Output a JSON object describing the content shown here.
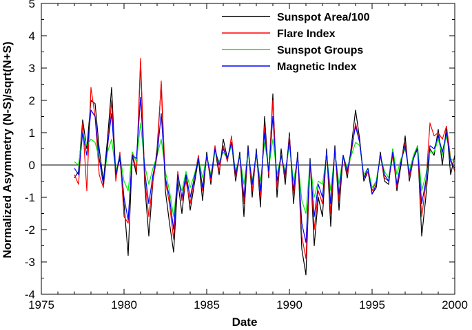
{
  "chart_data": {
    "type": "line",
    "title": "",
    "xlabel": "Date",
    "ylabel": "Normalized Asymmetry (N-S)/sqrt(N+S)",
    "xlim": [
      1975,
      2000
    ],
    "ylim": [
      -4,
      5
    ],
    "xticks": [
      1975,
      1980,
      1985,
      1990,
      1995,
      2000
    ],
    "yticks": [
      -4,
      -3,
      -2,
      -1,
      0,
      1,
      2,
      3,
      4,
      5
    ],
    "zero_line": true,
    "legend_position": "top-right",
    "x": [
      1977.0,
      1977.25,
      1977.5,
      1977.75,
      1978.0,
      1978.25,
      1978.5,
      1978.75,
      1979.0,
      1979.25,
      1979.5,
      1979.75,
      1980.0,
      1980.25,
      1980.5,
      1980.75,
      1981.0,
      1981.25,
      1981.5,
      1981.75,
      1982.0,
      1982.25,
      1982.5,
      1982.75,
      1983.0,
      1983.25,
      1983.5,
      1983.75,
      1984.0,
      1984.25,
      1984.5,
      1984.75,
      1985.0,
      1985.25,
      1985.5,
      1985.75,
      1986.0,
      1986.25,
      1986.5,
      1986.75,
      1987.0,
      1987.25,
      1987.5,
      1987.75,
      1988.0,
      1988.25,
      1988.5,
      1988.75,
      1989.0,
      1989.25,
      1989.5,
      1989.75,
      1990.0,
      1990.25,
      1990.5,
      1990.75,
      1991.0,
      1991.25,
      1991.5,
      1991.75,
      1992.0,
      1992.25,
      1992.5,
      1992.75,
      1993.0,
      1993.25,
      1993.5,
      1993.75,
      1994.0,
      1994.25,
      1994.5,
      1994.75,
      1995.0,
      1995.25,
      1995.5,
      1995.75,
      1996.0,
      1996.25,
      1996.5,
      1996.75,
      1997.0,
      1997.25,
      1997.5,
      1997.75,
      1998.0,
      1998.25,
      1998.5,
      1998.75,
      1999.0,
      1999.25,
      1999.5,
      1999.75,
      2000.0
    ],
    "series": [
      {
        "name": "Sunspot Area/100",
        "color": "#000000",
        "values": [
          -0.4,
          -0.2,
          1.4,
          0.5,
          2.0,
          1.9,
          0.5,
          -0.5,
          0.8,
          2.4,
          -0.3,
          0.2,
          -1.2,
          -2.8,
          0.3,
          -0.3,
          3.2,
          -0.6,
          -2.2,
          -0.5,
          0.5,
          2.5,
          -0.8,
          -1.8,
          -2.7,
          -0.5,
          -1.5,
          -0.3,
          -1.4,
          -0.6,
          0.2,
          -1.1,
          0.4,
          -0.6,
          0.5,
          -0.3,
          0.8,
          0.2,
          0.7,
          -0.5,
          0.4,
          -1.6,
          0.6,
          -1.0,
          0.5,
          -1.3,
          1.5,
          -0.4,
          2.2,
          -1.0,
          0.5,
          -0.6,
          1.0,
          -1.2,
          0.4,
          -2.6,
          -3.4,
          0.2,
          -2.5,
          -1.0,
          -1.6,
          0.5,
          -1.9,
          0.6,
          -1.4,
          0.3,
          -0.4,
          0.6,
          1.7,
          0.8,
          -0.5,
          -0.2,
          -0.9,
          -0.7,
          0.4,
          -0.5,
          -0.6,
          0.5,
          -0.8,
          0.0,
          0.9,
          -0.5,
          0.2,
          0.6,
          -2.2,
          -1.0,
          0.5,
          0.3,
          1.1,
          0.0,
          1.2,
          -0.3,
          0.3
        ]
      },
      {
        "name": "Flare Index",
        "color": "#ff0000",
        "values": [
          -0.3,
          -0.6,
          1.3,
          -0.8,
          2.4,
          1.5,
          -0.3,
          -0.7,
          0.5,
          2.0,
          -0.5,
          0.4,
          -1.6,
          -1.8,
          0.4,
          -0.2,
          3.3,
          -0.4,
          -1.6,
          -0.5,
          0.3,
          2.6,
          -0.5,
          -1.2,
          -2.3,
          -0.2,
          -1.1,
          -0.5,
          -1.2,
          -0.4,
          0.3,
          -0.8,
          0.3,
          -0.5,
          0.6,
          -0.2,
          0.6,
          0.1,
          0.9,
          -0.4,
          0.3,
          -1.2,
          0.5,
          -0.8,
          0.4,
          -1.0,
          1.2,
          -0.3,
          2.0,
          -0.7,
          0.3,
          -0.4,
          0.9,
          -1.0,
          0.3,
          -2.2,
          -2.9,
          0.1,
          -2.0,
          -0.8,
          -1.2,
          0.4,
          -1.5,
          0.5,
          -1.1,
          0.3,
          -0.3,
          0.4,
          1.3,
          0.7,
          -0.4,
          -0.2,
          -0.8,
          -0.5,
          0.3,
          -0.4,
          -0.5,
          0.3,
          -0.7,
          0.1,
          0.7,
          -0.4,
          0.2,
          0.5,
          -1.6,
          -0.6,
          1.3,
          0.9,
          1.0,
          0.8,
          1.2,
          0.2,
          -0.2
        ]
      },
      {
        "name": "Sunspot Groups",
        "color": "#00ee00",
        "values": [
          0.1,
          0.0,
          1.0,
          0.6,
          0.8,
          0.7,
          0.2,
          -0.6,
          0.4,
          0.8,
          -0.2,
          0.3,
          -0.5,
          -0.8,
          0.4,
          0.1,
          1.3,
          0.0,
          -0.6,
          -0.1,
          0.3,
          0.8,
          -0.2,
          -0.8,
          -1.6,
          -0.4,
          -0.8,
          -0.2,
          -0.7,
          -0.3,
          0.2,
          -0.4,
          0.3,
          -0.3,
          0.4,
          0.1,
          0.4,
          0.2,
          0.6,
          -0.2,
          0.3,
          -0.6,
          0.4,
          -0.5,
          0.3,
          -0.5,
          0.7,
          -0.1,
          0.8,
          -0.3,
          0.3,
          -0.2,
          0.6,
          -0.5,
          0.2,
          -1.1,
          -1.5,
          0.1,
          -1.0,
          -0.5,
          -0.6,
          0.3,
          -0.8,
          0.4,
          -0.6,
          0.3,
          -0.1,
          0.3,
          0.7,
          0.6,
          -0.3,
          -0.1,
          -0.7,
          -0.5,
          0.3,
          -0.2,
          -0.4,
          0.5,
          -0.3,
          0.2,
          0.5,
          -0.2,
          0.3,
          0.6,
          -0.8,
          -0.3,
          0.4,
          0.4,
          0.8,
          0.3,
          0.9,
          0.2,
          0.1
        ]
      },
      {
        "name": "Magnetic Index",
        "color": "#0000ff",
        "values": [
          -0.1,
          -0.3,
          1.0,
          0.3,
          1.7,
          1.5,
          0.2,
          -0.6,
          0.6,
          1.6,
          -0.3,
          0.3,
          -1.0,
          -1.7,
          0.3,
          0.2,
          2.1,
          -0.2,
          -1.2,
          -0.3,
          0.3,
          1.6,
          -0.4,
          -1.0,
          -2.0,
          -0.3,
          -1.0,
          -0.3,
          -1.0,
          -0.4,
          0.2,
          -0.7,
          0.3,
          -0.4,
          0.5,
          0.0,
          0.5,
          0.2,
          0.7,
          -0.3,
          0.3,
          -1.0,
          0.5,
          -0.6,
          0.4,
          -0.8,
          1.0,
          -0.2,
          1.5,
          -0.5,
          0.3,
          -0.3,
          0.8,
          -0.8,
          0.3,
          -1.8,
          -2.4,
          0.1,
          -1.6,
          -0.6,
          -1.0,
          0.4,
          -1.2,
          0.5,
          -0.9,
          0.3,
          -0.2,
          0.5,
          1.2,
          0.7,
          -0.4,
          -0.1,
          -0.9,
          -0.6,
          0.3,
          -0.3,
          -0.5,
          0.4,
          -0.6,
          0.1,
          0.6,
          -0.3,
          0.2,
          0.5,
          -1.2,
          -0.5,
          0.6,
          0.5,
          0.9,
          0.4,
          1.0,
          0.1,
          -0.1
        ]
      }
    ]
  }
}
